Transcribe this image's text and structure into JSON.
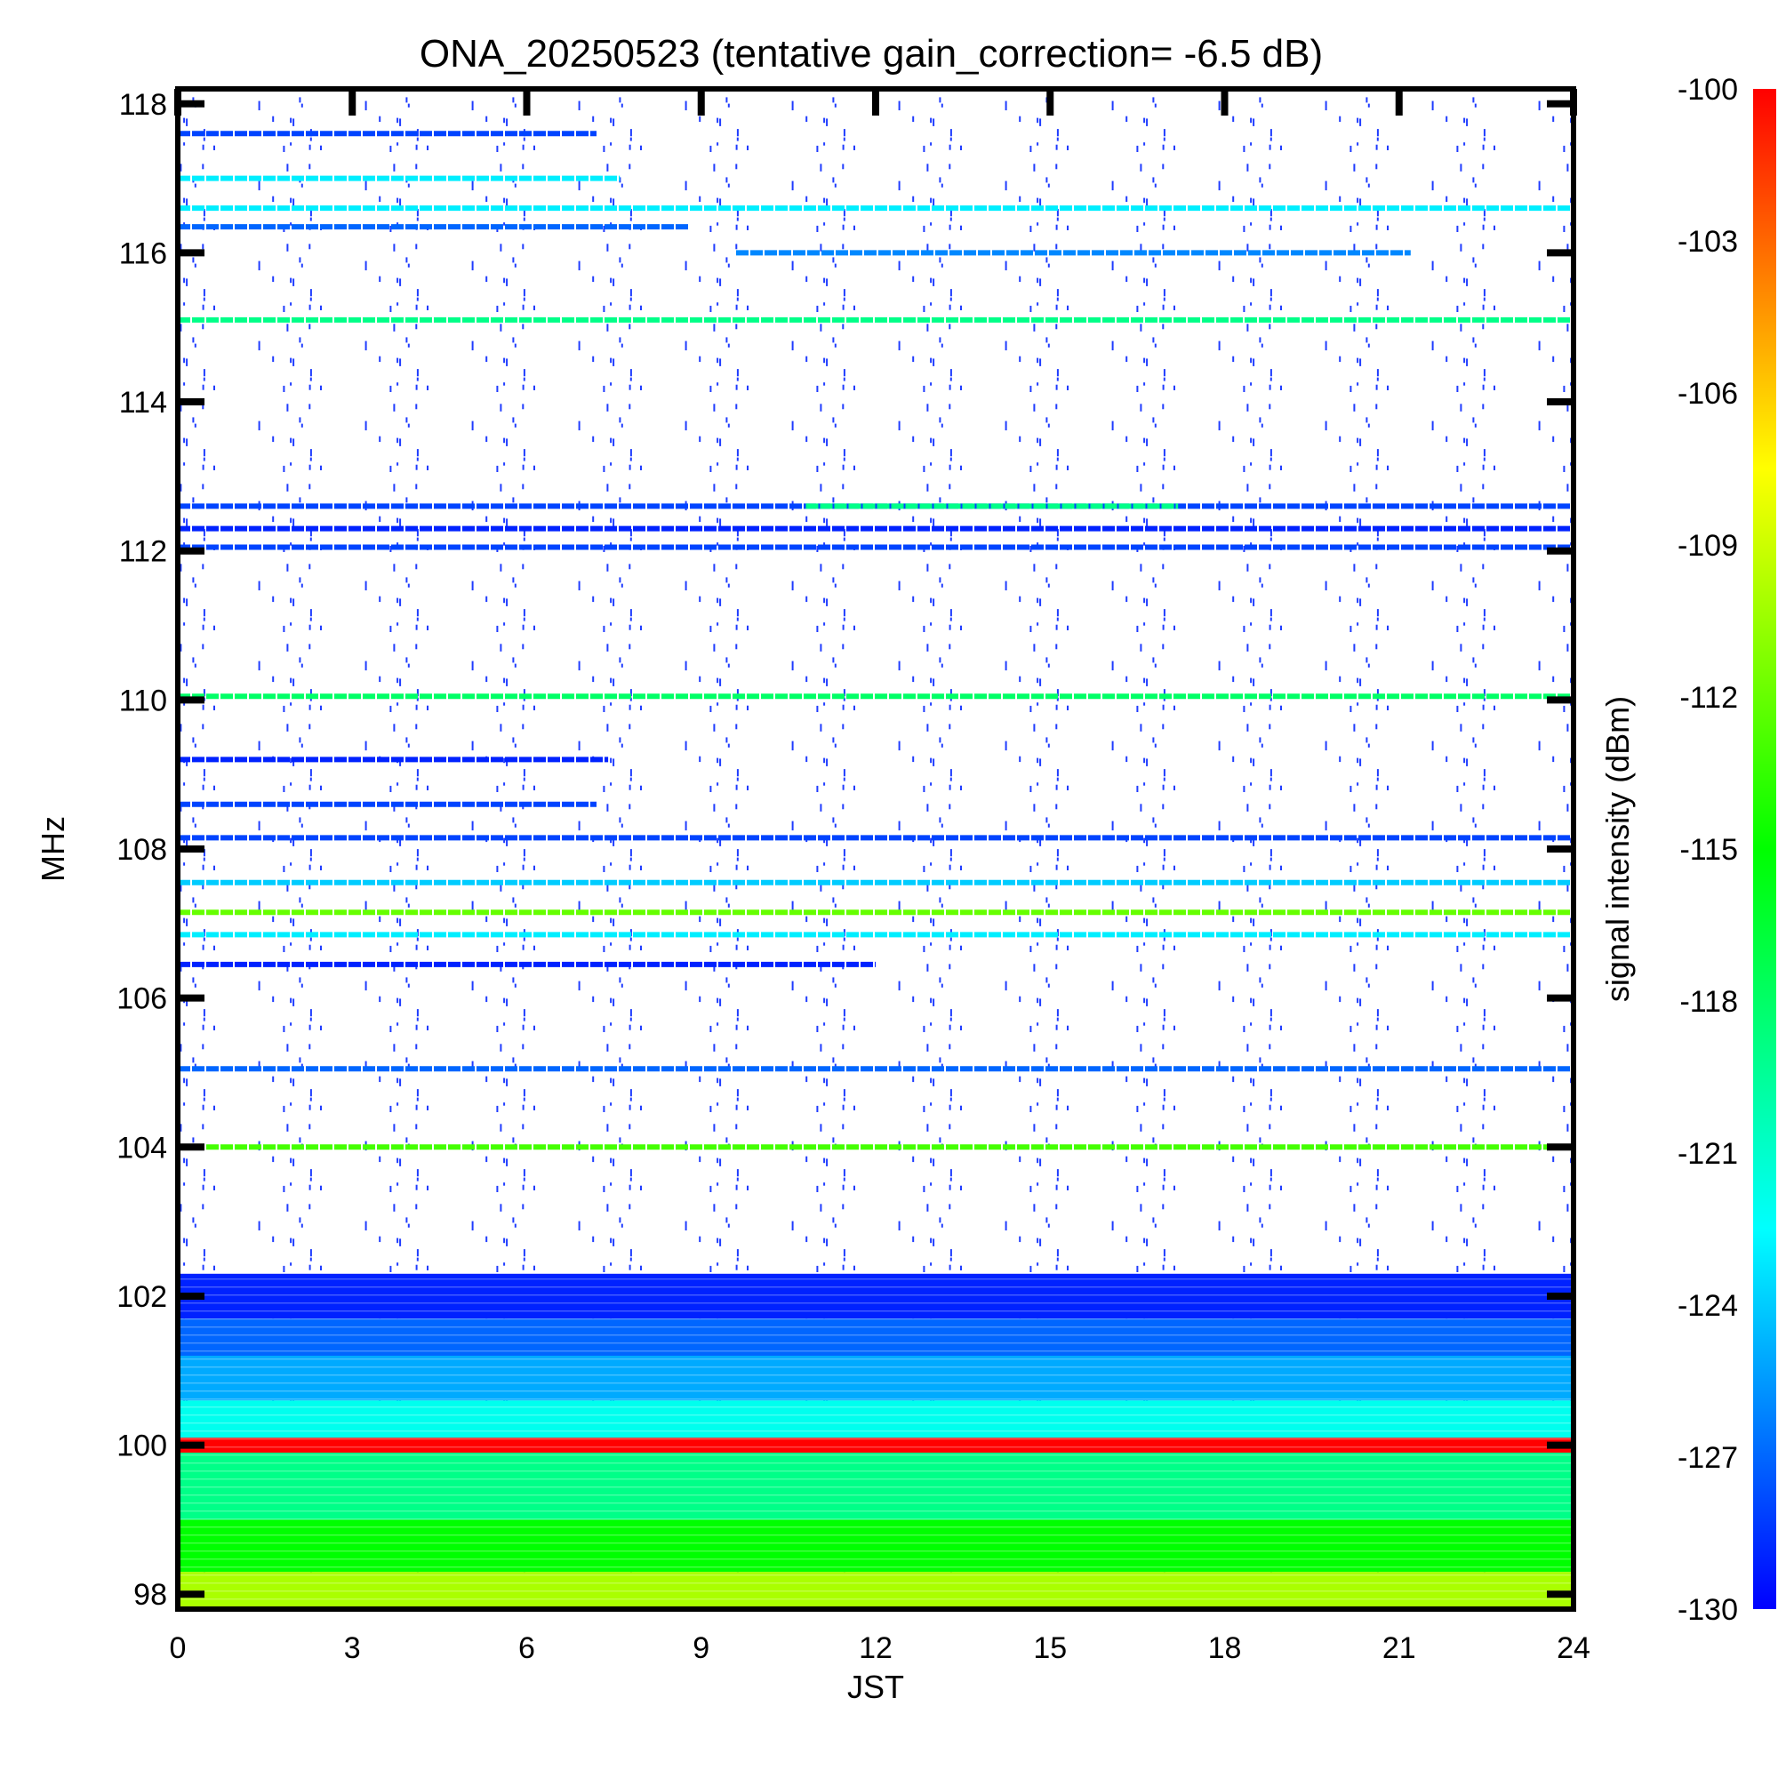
{
  "chart_data": {
    "type": "heatmap",
    "title": "ONA_20250523 (tentative gain_correction= -6.5 dB)",
    "xlabel": "JST",
    "ylabel": "MHz",
    "xlim": [
      0,
      24
    ],
    "ylim": [
      97.8,
      118.2
    ],
    "x_ticks": [
      0,
      3,
      6,
      9,
      12,
      15,
      18,
      21,
      24
    ],
    "y_ticks": [
      98,
      100,
      102,
      104,
      106,
      108,
      110,
      112,
      114,
      116,
      118
    ],
    "colorbar": {
      "label": "signal intensity (dBm)",
      "range": [
        -130,
        -100
      ],
      "ticks": [
        -100,
        -103,
        -106,
        -109,
        -112,
        -115,
        -118,
        -121,
        -124,
        -127,
        -130
      ],
      "colormap": [
        "#0000ff",
        "#0080ff",
        "#00ffff",
        "#00ff80",
        "#00ff00",
        "#80ff00",
        "#ffff00",
        "#ff8000",
        "#ff0000"
      ]
    },
    "bands": [
      {
        "f_start": 97.8,
        "f_end": 98.3,
        "dbm": -110
      },
      {
        "f_start": 98.3,
        "f_end": 99.0,
        "dbm": -115
      },
      {
        "f_start": 99.0,
        "f_end": 99.9,
        "dbm": -119
      },
      {
        "f_start": 99.9,
        "f_end": 100.1,
        "dbm": -100
      },
      {
        "f_start": 100.1,
        "f_end": 100.6,
        "dbm": -122
      },
      {
        "f_start": 100.6,
        "f_end": 101.2,
        "dbm": -125
      },
      {
        "f_start": 101.2,
        "f_end": 101.7,
        "dbm": -127
      },
      {
        "f_start": 101.7,
        "f_end": 102.3,
        "dbm": -129
      }
    ],
    "lines": [
      {
        "freq": 117.6,
        "x_start": 0,
        "x_end": 7.2,
        "dbm": -128
      },
      {
        "freq": 117.0,
        "x_start": 0,
        "x_end": 7.6,
        "dbm": -123
      },
      {
        "freq": 116.6,
        "x_start": 0,
        "x_end": 24,
        "dbm": -123
      },
      {
        "freq": 116.35,
        "x_start": 0,
        "x_end": 8.8,
        "dbm": -127
      },
      {
        "freq": 116.0,
        "x_start": 9.6,
        "x_end": 21.2,
        "dbm": -126
      },
      {
        "freq": 115.1,
        "x_start": 0,
        "x_end": 24,
        "dbm": -119
      },
      {
        "freq": 112.6,
        "x_start": 0,
        "x_end": 24,
        "dbm": -128
      },
      {
        "freq": 112.6,
        "x_start": 10.8,
        "x_end": 17.2,
        "dbm": -119
      },
      {
        "freq": 112.3,
        "x_start": 0,
        "x_end": 24,
        "dbm": -129
      },
      {
        "freq": 112.05,
        "x_start": 0,
        "x_end": 24,
        "dbm": -128
      },
      {
        "freq": 110.05,
        "x_start": 0,
        "x_end": 24,
        "dbm": -118
      },
      {
        "freq": 109.2,
        "x_start": 0,
        "x_end": 7.4,
        "dbm": -129
      },
      {
        "freq": 108.6,
        "x_start": 0,
        "x_end": 7.2,
        "dbm": -128
      },
      {
        "freq": 108.15,
        "x_start": 0,
        "x_end": 24,
        "dbm": -128
      },
      {
        "freq": 107.55,
        "x_start": 0,
        "x_end": 24,
        "dbm": -124
      },
      {
        "freq": 107.15,
        "x_start": 0,
        "x_end": 24,
        "dbm": -112
      },
      {
        "freq": 106.85,
        "x_start": 0,
        "x_end": 24,
        "dbm": -123
      },
      {
        "freq": 106.45,
        "x_start": 0,
        "x_end": 12,
        "dbm": -129
      },
      {
        "freq": 105.05,
        "x_start": 0,
        "x_end": 24,
        "dbm": -127
      },
      {
        "freq": 104.0,
        "x_start": 0,
        "x_end": 24,
        "dbm": -113
      }
    ]
  }
}
